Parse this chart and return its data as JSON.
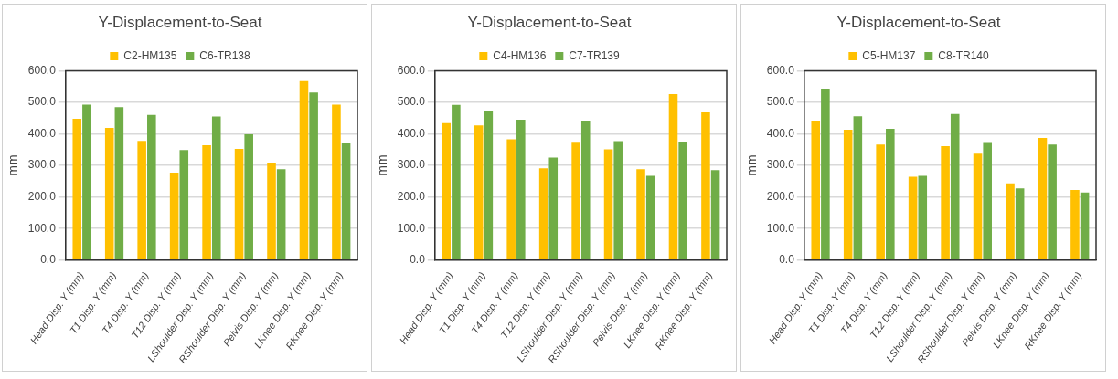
{
  "chart_data": [
    {
      "type": "bar",
      "title": "Y-Displacement-to-Seat",
      "ylabel": "mm",
      "categories": [
        "Head Disp. Y (mm)",
        "T1 Disp. Y (mm)",
        "T4 Disp. Y (mm)",
        "T12 Disp. Y (mm)",
        "LShoulder Disp. Y (mm)",
        "RShoulder Disp. Y (mm)",
        "Pelvis Disp. Y (mm)",
        "LKnee Disp. Y (mm)",
        "RKnee Disp. Y (mm)"
      ],
      "series": [
        {
          "name": "C2-HM135",
          "color": "#ffc000",
          "values": [
            448,
            419,
            378,
            277,
            364,
            352,
            308,
            567,
            493
          ]
        },
        {
          "name": "C6-TR138",
          "color": "#70ad47",
          "values": [
            493,
            485,
            460,
            349,
            455,
            399,
            288,
            531,
            370
          ]
        }
      ],
      "ylim": [
        0,
        600
      ],
      "yticks": [
        {
          "value": 0,
          "label": "0.0"
        },
        {
          "value": 100,
          "label": "100.0"
        },
        {
          "value": 200,
          "label": "200.0"
        },
        {
          "value": 300,
          "label": "300.0"
        },
        {
          "value": 400,
          "label": "400.0"
        },
        {
          "value": 500,
          "label": "500.0"
        },
        {
          "value": 600,
          "label": "600.0"
        }
      ],
      "grid": "y",
      "legend": "top"
    },
    {
      "type": "bar",
      "title": "Y-Displacement-to-Seat",
      "ylabel": "mm",
      "categories": [
        "Head Disp. Y (mm)",
        "T1 Disp. Y (mm)",
        "T4 Disp. Y (mm)",
        "T12 Disp. Y (mm)",
        "LShoulder Disp. Y (mm)",
        "RShoulder Disp. Y (mm)",
        "Pelvis Disp. Y (mm)",
        "LKnee Disp. Y (mm)",
        "RKnee Disp. Y (mm)"
      ],
      "series": [
        {
          "name": "C4-HM136",
          "color": "#ffc000",
          "values": [
            434,
            427,
            383,
            291,
            372,
            351,
            288,
            526,
            468
          ]
        },
        {
          "name": "C7-TR139",
          "color": "#70ad47",
          "values": [
            492,
            472,
            445,
            325,
            440,
            377,
            267,
            375,
            285
          ]
        }
      ],
      "ylim": [
        0,
        600
      ],
      "yticks": [
        {
          "value": 0,
          "label": "0.0"
        },
        {
          "value": 100,
          "label": "100.0"
        },
        {
          "value": 200,
          "label": "200.0"
        },
        {
          "value": 300,
          "label": "300.0"
        },
        {
          "value": 400,
          "label": "400.0"
        },
        {
          "value": 500,
          "label": "500.0"
        },
        {
          "value": 600,
          "label": "600.0"
        }
      ],
      "grid": "y",
      "legend": "top"
    },
    {
      "type": "bar",
      "title": "Y-Displacement-to-Seat",
      "ylabel": "mm",
      "categories": [
        "Head Disp. Y (mm)",
        "T1 Disp. Y (mm)",
        "T4 Disp. Y (mm)",
        "T12 Disp. Y (mm)",
        "LShoulder Disp. Y (mm)",
        "RShoulder Disp. Y (mm)",
        "Pelvis Disp. Y (mm)",
        "LKnee Disp. Y (mm)",
        "RKnee Disp. Y (mm)"
      ],
      "series": [
        {
          "name": "C5-HM137",
          "color": "#ffc000",
          "values": [
            439,
            413,
            366,
            264,
            361,
            337,
            243,
            387,
            222
          ]
        },
        {
          "name": "C8-TR140",
          "color": "#70ad47",
          "values": [
            542,
            456,
            416,
            267,
            463,
            371,
            227,
            366,
            214
          ]
        }
      ],
      "ylim": [
        0,
        600
      ],
      "yticks": [
        {
          "value": 0,
          "label": "0.0"
        },
        {
          "value": 100,
          "label": "100.0"
        },
        {
          "value": 200,
          "label": "200.0"
        },
        {
          "value": 300,
          "label": "300.0"
        },
        {
          "value": 400,
          "label": "400.0"
        },
        {
          "value": 500,
          "label": "500.0"
        },
        {
          "value": 600,
          "label": "600.0"
        }
      ],
      "grid": "y",
      "legend": "top"
    }
  ]
}
